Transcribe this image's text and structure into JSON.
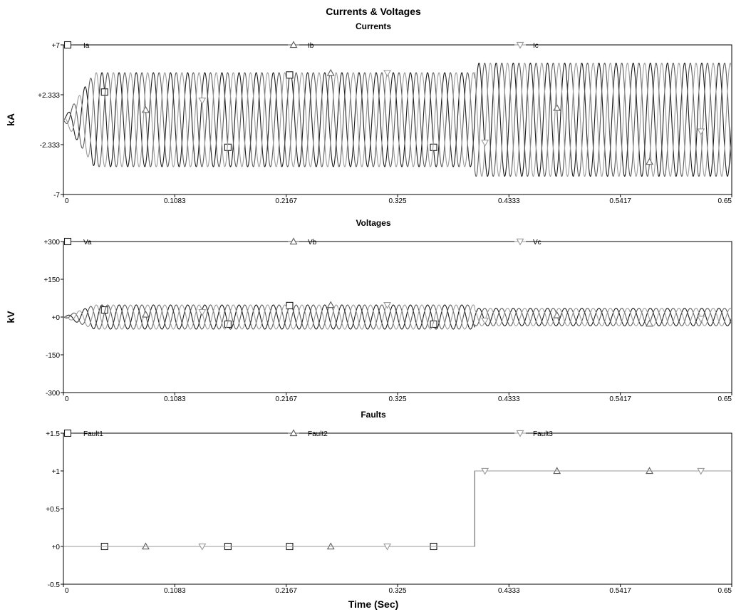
{
  "figure": {
    "title": "Currents & Voltages",
    "xlabel": "Time (Sec)"
  },
  "colors": {
    "phase_a": "#1a1a1a",
    "phase_b": "#5a5a5a",
    "phase_c": "#9a9a9a",
    "frame": "#000000",
    "background": "#ffffff"
  },
  "chart_data": [
    {
      "type": "line",
      "title": "Currents",
      "ylabel": "kA",
      "xlim": [
        0,
        0.65
      ],
      "ylim": [
        -7,
        7
      ],
      "x_ticks": [
        "0",
        "0.1083",
        "0.2167",
        "0.325",
        "0.4333",
        "0.5417",
        "0.65"
      ],
      "x_tick_values": [
        0,
        0.1083,
        0.2167,
        0.325,
        0.4333,
        0.5417,
        0.65
      ],
      "y_ticks": [
        "+7",
        "+2.333",
        "-2.333",
        "-7"
      ],
      "y_tick_values": [
        7,
        2.333,
        -2.333,
        -7
      ],
      "waveform": {
        "frequency_hz": 60,
        "fault_time": 0.4,
        "pre_fault_amplitude": 4.4,
        "post_fault_amplitude": 5.3,
        "start_ramp_until": 0.03
      },
      "series": [
        {
          "name": "Ia",
          "marker": "square",
          "phase_deg": 0
        },
        {
          "name": "Ib",
          "marker": "triangle-up",
          "phase_deg": -120
        },
        {
          "name": "Ic",
          "marker": "triangle-down",
          "phase_deg": 120
        }
      ]
    },
    {
      "type": "line",
      "title": "Voltages",
      "ylabel": "kV",
      "xlim": [
        0,
        0.65
      ],
      "ylim": [
        -300,
        300
      ],
      "x_ticks": [
        "0",
        "0.1083",
        "0.2167",
        "0.325",
        "0.4333",
        "0.5417",
        "0.65"
      ],
      "x_tick_values": [
        0,
        0.1083,
        0.2167,
        0.325,
        0.4333,
        0.5417,
        0.65
      ],
      "y_ticks": [
        "+300",
        "+150",
        "+0",
        "-150",
        "-300"
      ],
      "y_tick_values": [
        300,
        150,
        0,
        -150,
        -300
      ],
      "waveform": {
        "frequency_hz": 60,
        "fault_time": 0.4,
        "pre_fault_amplitude": 48,
        "post_fault_amplitude": 35,
        "start_ramp_until": 0.03
      },
      "series": [
        {
          "name": "Va",
          "marker": "square",
          "phase_deg": 0
        },
        {
          "name": "Vb",
          "marker": "triangle-up",
          "phase_deg": -120
        },
        {
          "name": "Vc",
          "marker": "triangle-down",
          "phase_deg": 120
        }
      ]
    },
    {
      "type": "line",
      "title": "Faults",
      "ylabel": "",
      "xlim": [
        0,
        0.65
      ],
      "ylim": [
        -0.5,
        1.5
      ],
      "x_ticks": [
        "0",
        "0.1083",
        "0.2167",
        "0.325",
        "0.4333",
        "0.5417",
        "0.65"
      ],
      "x_tick_values": [
        0,
        0.1083,
        0.2167,
        0.325,
        0.4333,
        0.5417,
        0.65
      ],
      "y_ticks": [
        "+1.5",
        "+1",
        "+0.5",
        "+0",
        "-0.5"
      ],
      "y_tick_values": [
        1.5,
        1,
        0.5,
        0,
        -0.5
      ],
      "series": [
        {
          "name": "Fault1",
          "marker": "square",
          "x": [
            0,
            0.4,
            0.4,
            0.65
          ],
          "y": [
            0,
            0,
            1,
            1
          ]
        },
        {
          "name": "Fault2",
          "marker": "triangle-up",
          "x": [
            0,
            0.4,
            0.4,
            0.65
          ],
          "y": [
            0,
            0,
            1,
            1
          ]
        },
        {
          "name": "Fault3",
          "marker": "triangle-down",
          "x": [
            0,
            0.4,
            0.4,
            0.65
          ],
          "y": [
            0,
            0,
            1,
            1
          ]
        }
      ]
    }
  ]
}
